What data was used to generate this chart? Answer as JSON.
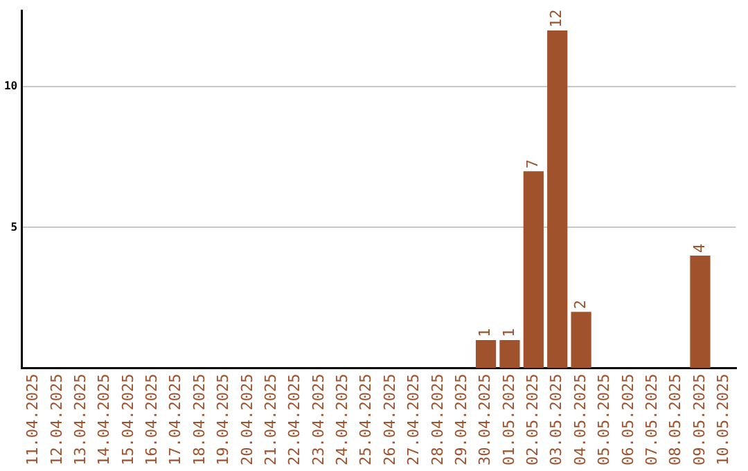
{
  "chart_data": {
    "type": "bar",
    "categories": [
      "11.04.2025",
      "12.04.2025",
      "13.04.2025",
      "14.04.2025",
      "15.04.2025",
      "16.04.2025",
      "17.04.2025",
      "18.04.2025",
      "19.04.2025",
      "20.04.2025",
      "21.04.2025",
      "22.04.2025",
      "23.04.2025",
      "24.04.2025",
      "25.04.2025",
      "26.04.2025",
      "27.04.2025",
      "28.04.2025",
      "29.04.2025",
      "30.04.2025",
      "01.05.2025",
      "02.05.2025",
      "03.05.2025",
      "04.05.2025",
      "05.05.2025",
      "06.05.2025",
      "07.05.2025",
      "08.05.2025",
      "09.05.2025",
      "10.05.2025"
    ],
    "values": [
      0,
      0,
      0,
      0,
      0,
      0,
      0,
      0,
      0,
      0,
      0,
      0,
      0,
      0,
      0,
      0,
      0,
      0,
      0,
      1,
      1,
      7,
      12,
      2,
      0,
      0,
      0,
      0,
      4,
      0
    ],
    "value_labels": [
      null,
      null,
      null,
      null,
      null,
      null,
      null,
      null,
      null,
      null,
      null,
      null,
      null,
      null,
      null,
      null,
      null,
      null,
      null,
      "1",
      "1",
      "7",
      "12",
      "2",
      null,
      null,
      null,
      null,
      "4",
      null
    ],
    "color": "#a0522d",
    "ylim": [
      0,
      12.7
    ],
    "yticks": [
      5,
      10
    ],
    "grid": "y",
    "legend": false
  }
}
